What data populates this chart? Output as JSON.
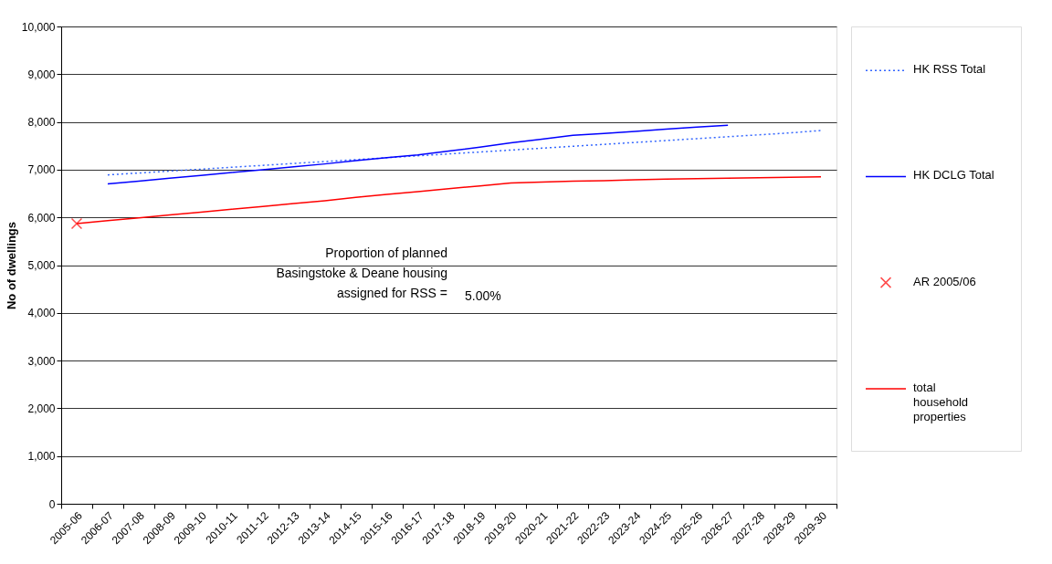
{
  "chart_data": {
    "type": "line",
    "ylabel": "No of dwellings",
    "categories": [
      "2005-06",
      "2006-07",
      "2007-08",
      "2008-09",
      "2009-10",
      "2010-11",
      "2011-12",
      "2012-13",
      "2013-14",
      "2014-15",
      "2015-16",
      "2016-17",
      "2017-18",
      "2018-19",
      "2019-20",
      "2020-21",
      "2021-22",
      "2022-23",
      "2023-24",
      "2024-25",
      "2025-26",
      "2026-27",
      "2027-28",
      "2028-29",
      "2029-30"
    ],
    "series": [
      {
        "name": "HK RSS Total",
        "color": "#3366ff",
        "line_style": "dotted",
        "values": [
          null,
          6890,
          6930,
          6970,
          7010,
          7050,
          7090,
          7130,
          7170,
          7210,
          7250,
          7290,
          7330,
          7370,
          7410,
          7450,
          7490,
          7530,
          7570,
          7610,
          7650,
          7690,
          7730,
          7770,
          7820
        ]
      },
      {
        "name": "HK DCLG Total",
        "color": "#0000ff",
        "line_style": "solid",
        "values": [
          null,
          6700,
          6760,
          6820,
          6880,
          6940,
          7000,
          7060,
          7120,
          7190,
          7250,
          7310,
          7390,
          7470,
          7560,
          7640,
          7720,
          7760,
          7800,
          7850,
          7890,
          7930,
          null,
          null,
          null
        ]
      },
      {
        "name": "AR 2005/06",
        "type": "scatter",
        "marker": "cross",
        "color": "#ff0000",
        "values": [
          5870,
          null,
          null,
          null,
          null,
          null,
          null,
          null,
          null,
          null,
          null,
          null,
          null,
          null,
          null,
          null,
          null,
          null,
          null,
          null,
          null,
          null,
          null,
          null,
          null
        ]
      },
      {
        "name": "total household properties",
        "color": "#ff0000",
        "line_style": "solid",
        "values": [
          5870,
          5930,
          5990,
          6050,
          6110,
          6170,
          6230,
          6290,
          6350,
          6420,
          6480,
          6540,
          6600,
          6660,
          6720,
          6740,
          6760,
          6770,
          6790,
          6800,
          6810,
          6820,
          6830,
          6840,
          6850
        ]
      }
    ],
    "ylim": [
      0,
      10000
    ],
    "yticks": [
      0,
      {
        "value": 1000,
        "label": "1,000"
      },
      {
        "value": 2000,
        "label": "2,000"
      },
      {
        "value": 3000,
        "label": "3,000"
      },
      {
        "value": 4000,
        "label": "4,000"
      },
      {
        "value": 5000,
        "label": "5,000"
      },
      {
        "value": 6000,
        "label": "6,000"
      },
      {
        "value": 7000,
        "label": "7,000"
      },
      {
        "value": 8000,
        "label": "8,000"
      },
      {
        "value": 9000,
        "label": "9,000"
      },
      {
        "value": 10000,
        "label": "10,000"
      }
    ],
    "grid": "y",
    "legend": "right",
    "annotations": [
      "Proportion of planned\nBasingstoke & Deane housing\nassigned for RSS =",
      "5.00%"
    ]
  }
}
